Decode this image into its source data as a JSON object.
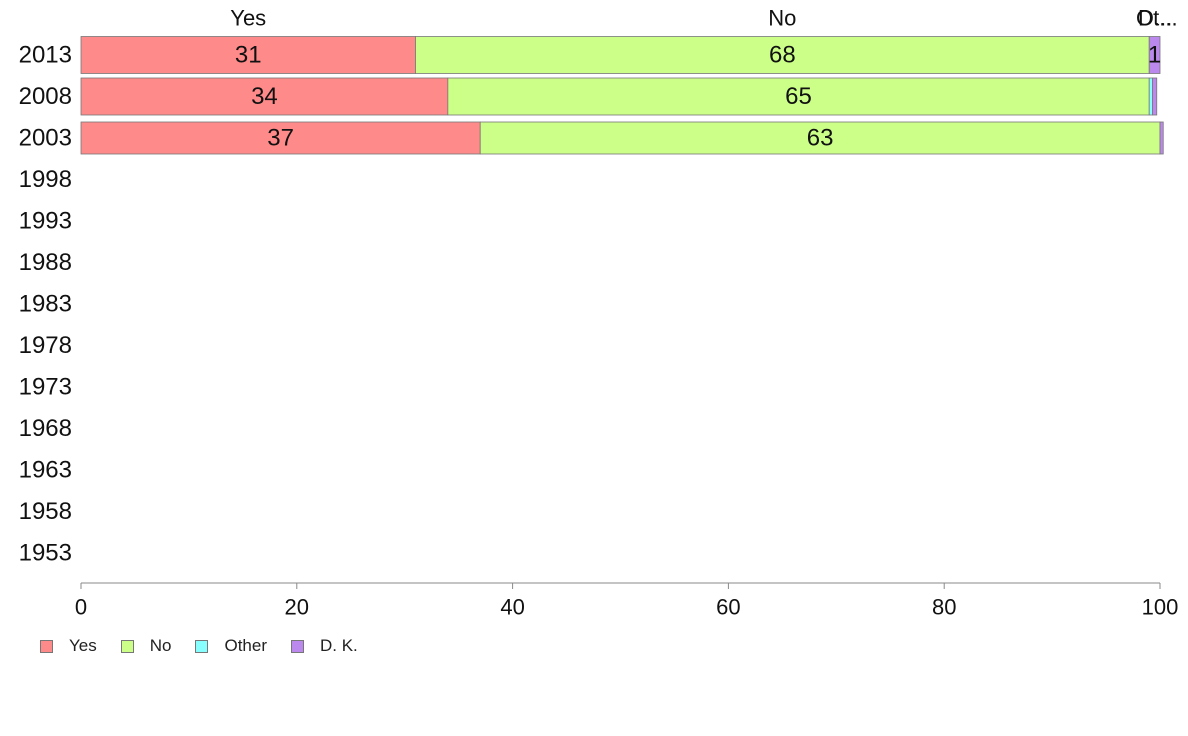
{
  "chart_data": {
    "type": "bar",
    "orientation": "horizontal",
    "stacked": true,
    "categories": [
      "2013",
      "2008",
      "2003",
      "1998",
      "1993",
      "1988",
      "1983",
      "1978",
      "1973",
      "1968",
      "1963",
      "1958",
      "1953"
    ],
    "series": [
      {
        "name": "Yes",
        "color": "#ff8a8a",
        "values": [
          31,
          34,
          37,
          null,
          null,
          null,
          null,
          null,
          null,
          null,
          null,
          null,
          null
        ]
      },
      {
        "name": "No",
        "color": "#ccff88",
        "values": [
          68,
          65,
          63,
          null,
          null,
          null,
          null,
          null,
          null,
          null,
          null,
          null,
          null
        ]
      },
      {
        "name": "Other",
        "color": "#88ffff",
        "values": [
          0,
          0.3,
          0,
          null,
          null,
          null,
          null,
          null,
          null,
          null,
          null,
          null,
          null
        ]
      },
      {
        "name": "D. K.",
        "color": "#bb88ee",
        "values": [
          1,
          0.4,
          0.3,
          null,
          null,
          null,
          null,
          null,
          null,
          null,
          null,
          null,
          null
        ]
      }
    ],
    "top_labels": [
      "Yes",
      "No",
      "Ot...",
      "D..."
    ],
    "bar_labels": [
      [
        "31",
        "68",
        "",
        "1"
      ],
      [
        "34",
        "65",
        "",
        ""
      ],
      [
        "37",
        "63",
        "",
        ""
      ]
    ],
    "xlim": [
      0,
      100
    ],
    "xticks": [
      "0",
      "20",
      "40",
      "60",
      "80",
      "100"
    ],
    "grid": false,
    "legend_position": "bottom-left"
  }
}
